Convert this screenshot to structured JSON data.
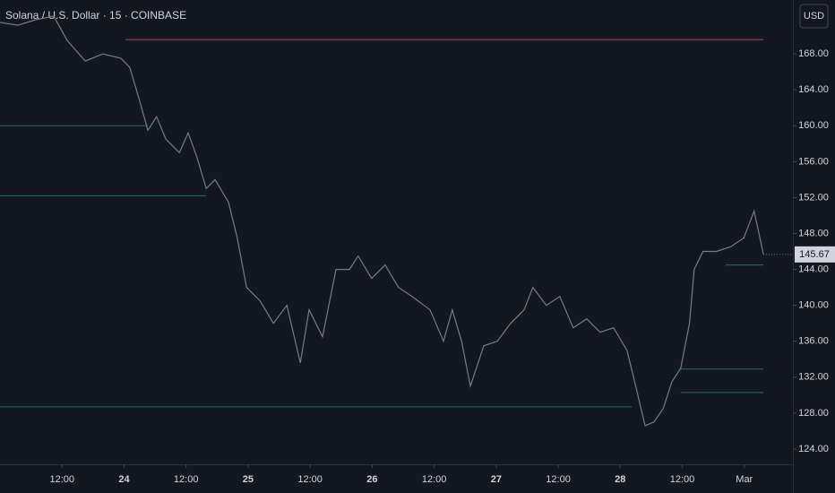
{
  "chart_data": {
    "type": "line",
    "title": "Solana / U.S. Dollar · 15 · COINBASE",
    "currency": "USD",
    "x": [
      0,
      3.5,
      6.9,
      10.4,
      13,
      16.5,
      19.9,
      23.4,
      25.1,
      26.9,
      28.6,
      30.3,
      32.1,
      34.7,
      36.4,
      38.1,
      39.9,
      41.6,
      44.2,
      45.9,
      47.7,
      50.3,
      52.9,
      55.5,
      58.1,
      59.8,
      62.4,
      65,
      67.6,
      69.3,
      71.9,
      74.5,
      77.1,
      79.7,
      83.2,
      85.8,
      87.5,
      89.3,
      91,
      93.6,
      96.2,
      98.8,
      101.4,
      103.1,
      105.7,
      108.3,
      110.9,
      113.5,
      116.1,
      118.7,
      121.3,
      123,
      124.8,
      126.5,
      128.3,
      130,
      131.7,
      133.4,
      134.3,
      136,
      138.6,
      141.3,
      143.9,
      145.9,
      147.7
    ],
    "series": [
      {
        "color": "#787b86",
        "values": [
          171.5,
          171.2,
          171.8,
          172.2,
          169.5,
          167.2,
          168,
          167.5,
          166.5,
          163,
          159.5,
          161,
          158.5,
          157,
          159.2,
          156.5,
          153,
          154,
          151.5,
          147.5,
          142,
          140.5,
          138,
          140,
          133.6,
          139.5,
          136.5,
          144,
          144,
          145.5,
          143,
          144.5,
          142,
          141,
          139.5,
          136,
          139.5,
          136,
          131,
          135.5,
          136,
          138,
          139.5,
          142,
          140,
          141,
          137.5,
          138.5,
          137,
          137.5,
          135,
          131,
          126.6,
          127,
          128.5,
          131.5,
          133,
          138,
          144,
          146,
          146,
          146.5,
          147.5,
          150.5,
          145.7
        ]
      }
    ],
    "levels": [
      {
        "value": 169.6,
        "color": "#b2475a",
        "x": [
          24.3,
          147.7
        ]
      },
      {
        "value": 160,
        "color": "#1e6f6a",
        "x": [
          0,
          28.6
        ]
      },
      {
        "value": 152.2,
        "color": "#1e6f6a",
        "x": [
          0,
          39.9
        ]
      },
      {
        "value": 128.7,
        "color": "#1e6f6a",
        "x": [
          0,
          122.2
        ]
      },
      {
        "value": 132.9,
        "color": "#1e6f6a",
        "x": [
          131.7,
          147.7
        ]
      },
      {
        "value": 130.3,
        "color": "#1e6f6a",
        "x": [
          131.7,
          147.7
        ]
      },
      {
        "value": 144.5,
        "color": "#1e6f6a",
        "x": [
          140.4,
          147.7
        ]
      }
    ],
    "last_price": 145.67,
    "xlim": [
      0,
      153.4
    ],
    "xticks": [
      {
        "value": 12,
        "label": "12:00"
      },
      24,
      {
        "value": 36,
        "label": "12:00"
      },
      25,
      {
        "value": 60,
        "label": "12:00"
      },
      26,
      {
        "value": 84,
        "label": "12:00"
      },
      27,
      {
        "value": 108,
        "label": "12:00"
      },
      28,
      {
        "value": 132,
        "label": "12:00"
      },
      {
        "value": 144,
        "label": "Mar"
      }
    ],
    "xtick_positions": [
      12,
      24,
      36,
      48,
      60,
      72,
      84,
      96,
      108,
      120,
      132,
      144
    ],
    "ylim": [
      122.3,
      174
    ],
    "yticks": [
      {
        "value": 124,
        "label": "124.00"
      },
      {
        "value": 128,
        "label": "128.00"
      },
      {
        "value": 132,
        "label": "132.00"
      },
      {
        "value": 136,
        "label": "136.00"
      },
      {
        "value": 140,
        "label": "140.00"
      },
      {
        "value": 144,
        "label": "144.00"
      },
      {
        "value": 148,
        "label": "148.00"
      },
      {
        "value": 152,
        "label": "152.00"
      },
      {
        "value": 156,
        "label": "156.00"
      },
      {
        "value": 160,
        "label": "160.00"
      },
      {
        "value": 164,
        "label": "164.00"
      },
      {
        "value": 168,
        "label": "168.00"
      }
    ]
  }
}
